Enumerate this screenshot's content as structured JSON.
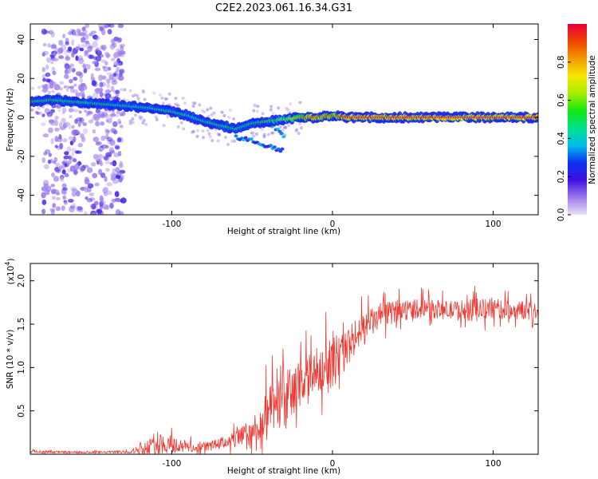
{
  "title": "C2E2.2023.061.16.34.G31",
  "chart_data": [
    {
      "type": "heatmap",
      "xlabel": "Height of straight line (km)",
      "ylabel": "Frequency (Hz)",
      "xlim": [
        -188,
        128
      ],
      "ylim": [
        -50,
        48
      ],
      "x_ticks": [
        -100,
        0,
        100
      ],
      "y_ticks": [
        -40,
        -20,
        0,
        20,
        40
      ],
      "colorbar": {
        "label": "Normalized spectral amplitude",
        "range": [
          0.0,
          1.0
        ],
        "ticks": [
          "0.0",
          "0.2",
          "0.4",
          "0.6",
          "0.8"
        ],
        "colormap": [
          "#e7e0f8",
          "#9d79ea",
          "#3d10e0",
          "#0a31f0",
          "#00bfea",
          "#00e08a",
          "#12e812",
          "#a8ec00",
          "#f7e800",
          "#f39a00",
          "#f04300",
          "#e8003a"
        ]
      },
      "ridge": {
        "description_x": [
          -188,
          -175,
          -160,
          -145,
          -130,
          -115,
          -100,
          -90,
          -80,
          -70,
          -60,
          -50,
          -40,
          -30,
          -20,
          -10,
          0,
          10,
          30,
          60,
          100,
          128
        ],
        "description_freq": [
          8,
          9,
          8,
          7,
          6,
          5,
          3,
          1,
          -2,
          -4,
          -6,
          -3,
          -2,
          -1,
          0,
          0,
          1,
          0,
          0,
          0,
          0,
          0
        ],
        "peak_amplitude": [
          0.5,
          0.55,
          0.5,
          0.5,
          0.45,
          0.45,
          0.5,
          0.45,
          0.45,
          0.5,
          0.5,
          0.5,
          0.55,
          0.65,
          0.8,
          0.9,
          0.85,
          0.95,
          0.95,
          0.95,
          0.95,
          0.95
        ]
      },
      "branches": [
        {
          "x": [
            -60,
            -50,
            -40,
            -30
          ],
          "freq": [
            -10,
            -12,
            -15,
            -17
          ],
          "amplitude": 0.3
        },
        {
          "x": [
            -40,
            -35,
            -30
          ],
          "freq": [
            -2,
            -6,
            -10
          ],
          "amplitude": 0.4
        }
      ],
      "noise_band": {
        "x_range": [
          -180,
          -130
        ],
        "freq_range": [
          -50,
          48
        ],
        "amplitude": 0.25
      }
    },
    {
      "type": "line",
      "color": "#ee3a33",
      "xlabel": "Height of straight line (km)",
      "ylabel": "SNR (10 * v/v)",
      "multiplier_label": "(x10",
      "multiplier_exp": "4",
      "xlim": [
        -188,
        128
      ],
      "ylim": [
        0,
        2.2
      ],
      "x_ticks": [
        -100,
        0,
        100
      ],
      "y_ticks": [
        "0.5",
        "1.0",
        "1.5",
        "2.0"
      ],
      "envelope": {
        "x": [
          -188,
          -150,
          -125,
          -115,
          -105,
          -95,
          -85,
          -75,
          -65,
          -55,
          -45,
          -40,
          -35,
          -30,
          -25,
          -20,
          -15,
          -10,
          -5,
          0,
          5,
          10,
          15,
          20,
          30,
          40,
          50,
          60,
          70,
          80,
          90,
          100,
          110,
          120,
          128
        ],
        "base": [
          0.03,
          0.02,
          0.03,
          0.08,
          0.12,
          0.1,
          0.07,
          0.1,
          0.15,
          0.2,
          0.3,
          0.45,
          0.55,
          0.6,
          0.7,
          0.75,
          0.85,
          0.95,
          1.05,
          1.05,
          1.15,
          1.25,
          1.35,
          1.45,
          1.6,
          1.65,
          1.68,
          1.68,
          1.66,
          1.66,
          1.66,
          1.68,
          1.66,
          1.66,
          1.65
        ],
        "amp": [
          0.02,
          0.02,
          0.03,
          0.15,
          0.2,
          0.15,
          0.08,
          0.1,
          0.12,
          0.25,
          0.45,
          0.5,
          0.55,
          0.55,
          0.6,
          0.55,
          0.5,
          0.45,
          0.45,
          0.5,
          0.45,
          0.4,
          0.35,
          0.3,
          0.25,
          0.2,
          0.2,
          0.18,
          0.18,
          0.2,
          0.22,
          0.2,
          0.18,
          0.18,
          0.18
        ]
      }
    }
  ]
}
